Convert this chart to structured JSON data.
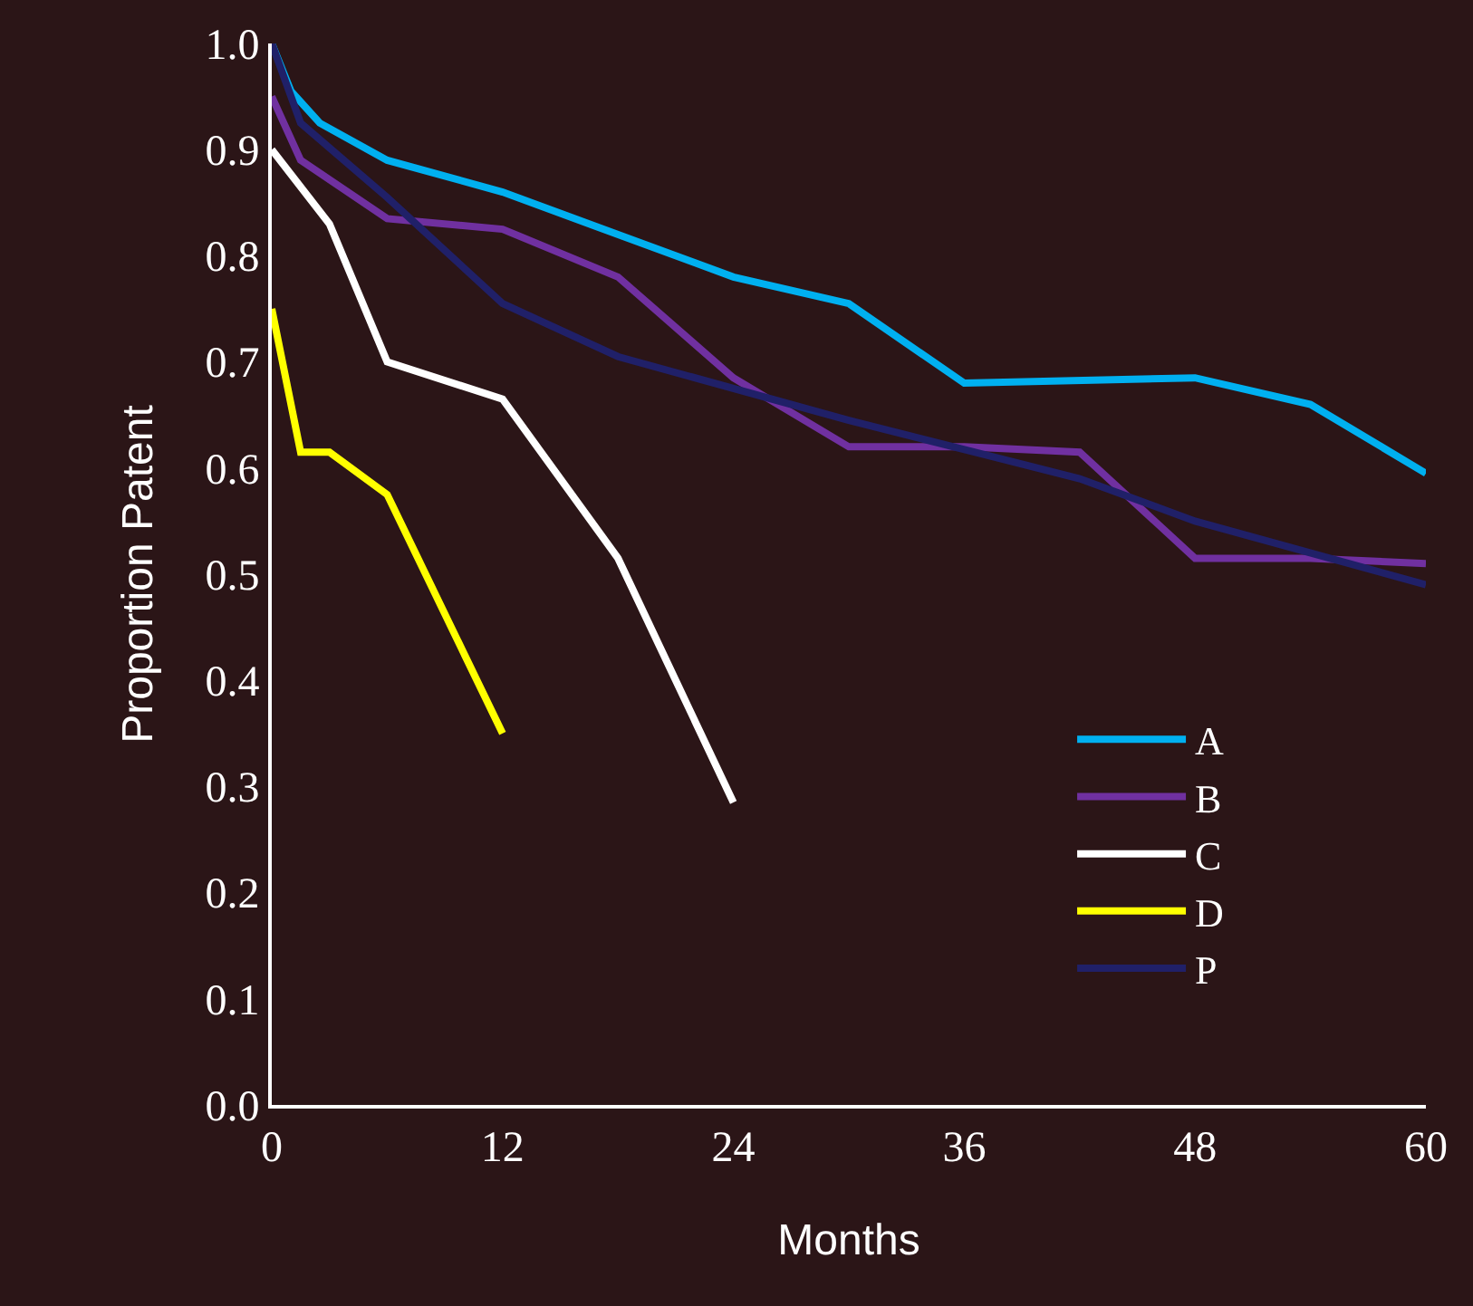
{
  "chart_data": {
    "type": "line",
    "xlabel": "Months",
    "ylabel": "Proportion Patent",
    "xlim": [
      0,
      60
    ],
    "xticks": [
      0,
      12,
      24,
      36,
      48,
      60
    ],
    "ylim": [
      0,
      1
    ],
    "yticks": [
      {
        "value": 0,
        "label": "0.0"
      },
      0.1,
      0.2,
      0.3,
      0.4,
      0.5,
      0.6,
      0.7,
      0.8,
      0.9,
      {
        "value": 1,
        "label": "1.0"
      }
    ],
    "grid": false,
    "legend": "bottom right",
    "marker": "none",
    "line_style": "solid",
    "series": [
      {
        "name": "A",
        "color": "#00b0f0",
        "x": [
          0,
          1,
          2.5,
          6,
          12,
          24,
          30,
          36,
          48,
          54,
          60
        ],
        "values": [
          1.0,
          0.955,
          0.925,
          0.89,
          0.86,
          0.78,
          0.755,
          0.68,
          0.685,
          0.66,
          0.595
        ]
      },
      {
        "name": "B",
        "color": "#7030a0",
        "x": [
          0,
          1.5,
          6,
          12,
          18,
          24,
          30,
          36,
          42,
          48,
          54,
          60
        ],
        "values": [
          0.95,
          0.89,
          0.835,
          0.825,
          0.78,
          0.685,
          0.62,
          0.62,
          0.615,
          0.515,
          0.515,
          0.51
        ]
      },
      {
        "name": "C",
        "color": "#ffffff",
        "x": [
          0,
          3,
          6,
          12,
          18,
          24
        ],
        "values": [
          0.9,
          0.83,
          0.7,
          0.665,
          0.515,
          0.285
        ]
      },
      {
        "name": "D",
        "color": "#ffff00",
        "x": [
          0,
          1.5,
          3,
          6,
          12
        ],
        "values": [
          0.75,
          0.615,
          0.615,
          0.575,
          0.35
        ]
      },
      {
        "name": "P",
        "color": "#202068",
        "x": [
          0,
          1.5,
          6,
          12,
          18,
          30,
          42,
          48,
          60
        ],
        "values": [
          1.0,
          0.925,
          0.855,
          0.755,
          0.705,
          0.645,
          0.59,
          0.55,
          0.49
        ]
      }
    ]
  }
}
